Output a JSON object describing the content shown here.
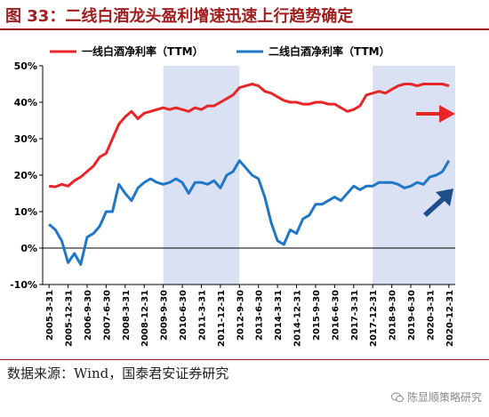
{
  "figure": {
    "title": "图 33：二线白酒龙头盈利增速迅速上行趋势确定",
    "source": "数据来源：Wind，国泰君安证券研究",
    "watermark": "陈显顺策略研究",
    "colors": {
      "title": "#a01e1e",
      "series1": "#e8262a",
      "series2": "#1f77c8",
      "shade": "#d9e1f2",
      "arrow_red": "#e8262a",
      "arrow_blue": "#1f4e8c"
    },
    "icons": [
      "wechat-icon",
      "right-arrow-icon",
      "up-right-arrow-icon"
    ]
  },
  "chart_data": {
    "type": "line",
    "title": "",
    "xlabel": "",
    "ylabel": "",
    "ylim": [
      -10,
      50
    ],
    "yticks": [
      "-10%",
      "0%",
      "10%",
      "20%",
      "30%",
      "40%",
      "50%"
    ],
    "ytick_values": [
      -10,
      0,
      10,
      20,
      30,
      40,
      50
    ],
    "xticks": [
      "2005-3-31",
      "2005-12-31",
      "2006-9-30",
      "2007-6-30",
      "2008-3-31",
      "2008-12-31",
      "2009-9-30",
      "2010-6-30",
      "2011-3-31",
      "2011-12-31",
      "2012-9-30",
      "2013-6-30",
      "2014-3-31",
      "2014-12-31",
      "2015-9-30",
      "2016-6-30",
      "2017-3-31",
      "2017-12-31",
      "2018-9-30",
      "2019-6-30",
      "2020-3-31",
      "2020-12-31"
    ],
    "xtick_values": [
      2005.25,
      2006.0,
      2006.75,
      2007.5,
      2008.25,
      2009.0,
      2009.75,
      2010.5,
      2011.25,
      2012.0,
      2012.75,
      2013.5,
      2014.25,
      2015.0,
      2015.75,
      2016.5,
      2017.25,
      2018.0,
      2018.75,
      2019.5,
      2020.25,
      2021.0
    ],
    "xlim": [
      2005.0,
      2021.25
    ],
    "legend": "top",
    "grid": false,
    "shaded_ranges": [
      [
        2009.75,
        2012.75
      ],
      [
        2018.0,
        2021.25
      ]
    ],
    "series": [
      {
        "name": "一线白酒净利率（TTM）",
        "color": "#e8262a",
        "x": [
          2005.25,
          2005.5,
          2005.75,
          2006.0,
          2006.25,
          2006.5,
          2006.75,
          2007.0,
          2007.25,
          2007.5,
          2007.75,
          2008.0,
          2008.25,
          2008.5,
          2008.75,
          2009.0,
          2009.25,
          2009.5,
          2009.75,
          2010.0,
          2010.25,
          2010.5,
          2010.75,
          2011.0,
          2011.25,
          2011.5,
          2011.75,
          2012.0,
          2012.25,
          2012.5,
          2012.75,
          2013.0,
          2013.25,
          2013.5,
          2013.75,
          2014.0,
          2014.25,
          2014.5,
          2014.75,
          2015.0,
          2015.25,
          2015.5,
          2015.75,
          2016.0,
          2016.25,
          2016.5,
          2016.75,
          2017.0,
          2017.25,
          2017.5,
          2017.75,
          2018.0,
          2018.25,
          2018.5,
          2018.75,
          2019.0,
          2019.25,
          2019.5,
          2019.75,
          2020.0,
          2020.25,
          2020.5,
          2020.75,
          2021.0
        ],
        "y": [
          17,
          16.8,
          17.5,
          17,
          18.5,
          19.5,
          21,
          22.5,
          25,
          26,
          30,
          34,
          36,
          37.5,
          35.5,
          37,
          37.5,
          38,
          38.5,
          38,
          38.5,
          38,
          37.5,
          38.5,
          38,
          39,
          39,
          40,
          41,
          42,
          44,
          44.5,
          45,
          44.5,
          43,
          42.5,
          41.5,
          40.5,
          40,
          40,
          39.5,
          39.5,
          40,
          40,
          39.5,
          39.5,
          38.5,
          37.5,
          38,
          39,
          42,
          42.5,
          43,
          42.5,
          43.5,
          44.5,
          45,
          45,
          44.5,
          45,
          45,
          45,
          45,
          44.5
        ]
      },
      {
        "name": "二线白酒净利率（TTM）",
        "color": "#1f77c8",
        "x": [
          2005.25,
          2005.5,
          2005.75,
          2006.0,
          2006.25,
          2006.5,
          2006.75,
          2007.0,
          2007.25,
          2007.5,
          2007.75,
          2008.0,
          2008.25,
          2008.5,
          2008.75,
          2009.0,
          2009.25,
          2009.5,
          2009.75,
          2010.0,
          2010.25,
          2010.5,
          2010.75,
          2011.0,
          2011.25,
          2011.5,
          2011.75,
          2012.0,
          2012.25,
          2012.5,
          2012.75,
          2013.0,
          2013.25,
          2013.5,
          2013.75,
          2014.0,
          2014.25,
          2014.5,
          2014.75,
          2015.0,
          2015.25,
          2015.5,
          2015.75,
          2016.0,
          2016.25,
          2016.5,
          2016.75,
          2017.0,
          2017.25,
          2017.5,
          2017.75,
          2018.0,
          2018.25,
          2018.5,
          2018.75,
          2019.0,
          2019.25,
          2019.5,
          2019.75,
          2020.0,
          2020.25,
          2020.5,
          2020.75,
          2021.0
        ],
        "y": [
          6.5,
          5,
          2,
          -4,
          -1.5,
          -4.5,
          3,
          4,
          6,
          10,
          10,
          17.5,
          15,
          13,
          16.5,
          18,
          19,
          18,
          17.5,
          18,
          19,
          18,
          15,
          18,
          18,
          17.5,
          18.5,
          16.5,
          20,
          21,
          24,
          22,
          20,
          19,
          14,
          7,
          2,
          1,
          5,
          4,
          8,
          9,
          12,
          12,
          13,
          14,
          13,
          15,
          17,
          16,
          17,
          17,
          18,
          18,
          18,
          17.5,
          16.5,
          17,
          18,
          17.5,
          19.5,
          20,
          21,
          24
        ]
      }
    ]
  }
}
